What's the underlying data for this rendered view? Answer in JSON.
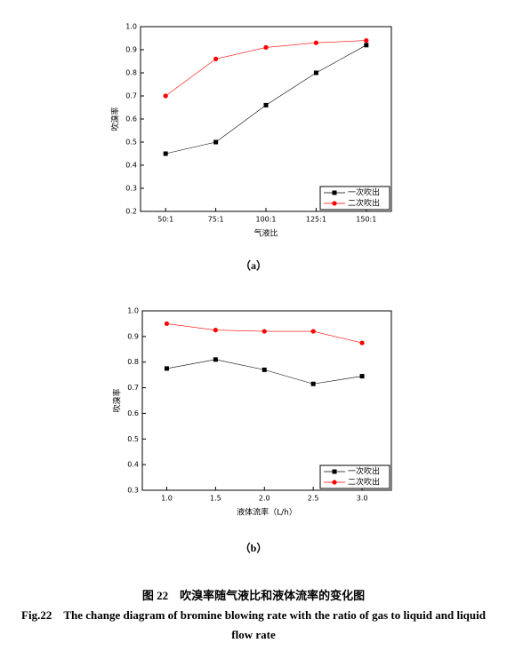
{
  "chart_data": [
    {
      "type": "line",
      "categories": [
        "50:1",
        "75:1",
        "100:1",
        "125:1",
        "150:1"
      ],
      "series": [
        {
          "name": "一次吹出",
          "color": "#000000",
          "marker": "square",
          "values": [
            0.45,
            0.5,
            0.66,
            0.8,
            0.92
          ]
        },
        {
          "name": "二次吹出",
          "color": "#ff0000",
          "marker": "circle",
          "values": [
            0.7,
            0.86,
            0.91,
            0.93,
            0.94
          ]
        }
      ],
      "xlabel": "气液比",
      "ylabel": "吹溴率",
      "ylim": [
        0.2,
        1.0
      ],
      "yticks": [
        0.2,
        0.3,
        0.4,
        0.5,
        0.6,
        0.7,
        0.8,
        0.9,
        {
          "value": 1.0,
          "label": "1.0"
        }
      ],
      "legend": "lower right",
      "caption": "（a）"
    },
    {
      "type": "line",
      "x": [
        1.0,
        1.5,
        2.0,
        2.5,
        3.0
      ],
      "series": [
        {
          "name": "一次吹出",
          "color": "#000000",
          "marker": "square",
          "values": [
            0.775,
            0.81,
            0.77,
            0.715,
            0.745
          ]
        },
        {
          "name": "二次吹出",
          "color": "#ff0000",
          "marker": "circle",
          "values": [
            0.95,
            0.925,
            0.92,
            0.92,
            0.875
          ]
        }
      ],
      "xlabel": "液体流率（L/h）",
      "ylabel": "吹溴率",
      "xlim": [
        0.75,
        3.3
      ],
      "xticks": [
        {
          "value": 1.0,
          "label": "1.0"
        },
        1.5,
        {
          "value": 2.0,
          "label": "2.0"
        },
        2.5,
        {
          "value": 3.0,
          "label": "3.0"
        }
      ],
      "ylim": [
        0.3,
        1.0
      ],
      "yticks": [
        0.3,
        0.4,
        0.5,
        0.6,
        0.7,
        0.8,
        0.9,
        {
          "value": 1.0,
          "label": "1.0"
        }
      ],
      "legend": "lower right",
      "caption": "（b）"
    }
  ],
  "figure_caption": {
    "chinese": "图 22　吹溴率随气液比和液体流率的变化图",
    "english": "Fig.22　The change diagram of bromine blowing rate with the ratio of gas to liquid and liquid flow rate"
  }
}
